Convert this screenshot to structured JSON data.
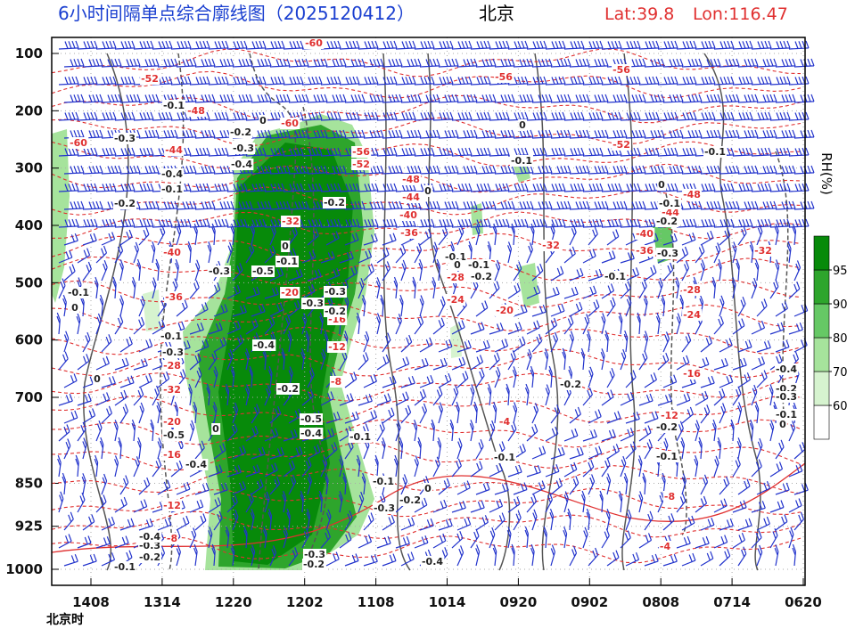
{
  "chart_data": {
    "type": "cross-section",
    "title": "6小时间隔单点综合廓线图（2025120412）",
    "location": "北京",
    "lat": "Lat:39.8",
    "lon": "Lon:116.47",
    "x_label": "北京时",
    "categories": [
      "1408",
      "1314",
      "1220",
      "1202",
      "1108",
      "1014",
      "0920",
      "0902",
      "0808",
      "0714",
      "0620"
    ],
    "ylim": [
      72,
      1028
    ],
    "yticks": [
      100,
      200,
      300,
      400,
      500,
      600,
      700,
      850,
      925,
      1000
    ],
    "colorbar": {
      "label": "RH(%)",
      "ticks": [
        60,
        70,
        80,
        90,
        95
      ],
      "colors": [
        "#ffffff",
        "#d6f3cf",
        "#a6e39c",
        "#66c865",
        "#2ea52c",
        "#078a0a"
      ]
    },
    "temperature_labels": [
      "-60",
      "-52",
      "-48",
      "-60",
      "-56",
      "-56",
      "-52",
      "-56",
      "-52",
      "-48",
      "-44",
      "-40",
      "-36",
      "-48",
      "-44",
      "-40",
      "-36",
      "-32",
      "-32",
      "-40",
      "-36",
      "-28",
      "-24",
      "-20",
      "-28",
      "-24",
      "-16",
      "-12",
      "-8",
      "-4",
      "-4",
      "-8",
      "-12",
      "-16",
      "-20",
      "-32",
      "-28",
      "-32",
      "-20",
      "-16",
      "-12",
      "-8",
      "-60",
      "-44"
    ],
    "omega_labels": [
      "-0.1",
      "-0.3",
      "-0.4",
      "-0.1",
      "-0.2",
      "-0.2",
      "-0.3",
      "-0.4",
      "-0.2",
      "-0.3",
      "-0.5",
      "-0.1",
      "0",
      "-0.3",
      "-0.3",
      "-0.2",
      "-0.4",
      "-0.2",
      "-0.5",
      "-0.4",
      "0",
      "-0.1",
      "-0.1",
      "-0.3",
      "-0.5",
      "-0.4",
      "-0.1",
      "-0.3",
      "-0.2",
      "0",
      "-0.4",
      "-0.1",
      "-0.2",
      "-0.1",
      "0",
      "-0.1",
      "0",
      "0",
      "-0.1",
      "-0.2",
      "-0.1",
      "0",
      "-0.1",
      "-0.2",
      "-0.3",
      "-0.2",
      "-0.1",
      "-0.1",
      "-0.4",
      "-0.2",
      "-0.3",
      "-0.1",
      "0",
      "-0.1",
      "0",
      "0",
      "-0.1",
      "-0.2",
      "-0.3",
      "-0.4",
      "-0.2",
      "-0.3",
      "0"
    ]
  }
}
